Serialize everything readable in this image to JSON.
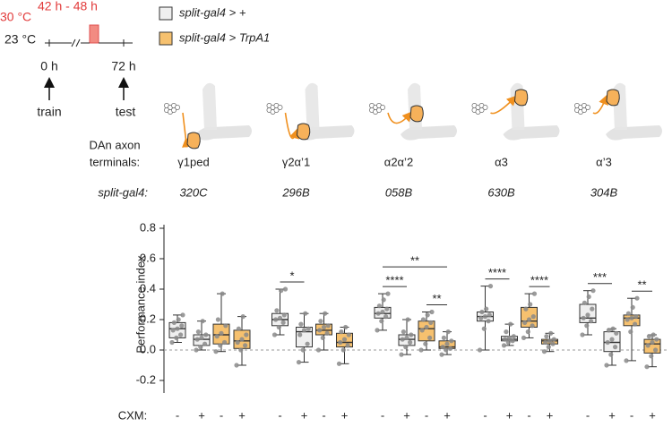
{
  "schematic": {
    "temp_high": "30 °C",
    "window": "42 h - 48 h",
    "temp_low": "23 °C",
    "t0": "0 h",
    "t1": "72 h",
    "train": "train",
    "test": "test"
  },
  "chart_data": {
    "type": "box",
    "y_label": "Performance index",
    "terminals_label": [
      "DAn axon",
      "terminals:"
    ],
    "line_label": "split-gal4:",
    "cxm_label": "CXM:",
    "ylim": [
      -0.2,
      0.8
    ],
    "yticks": [
      -0.2,
      {
        "value": 0,
        "label": "0.0"
      },
      0.2,
      0.4,
      0.6,
      0.8
    ],
    "zero_line": true,
    "series": [
      {
        "name": "split-gal4 > +",
        "color": "#efefef"
      },
      {
        "name": "split-gal4 > TrpA1",
        "color": "#f6c16f"
      }
    ],
    "groups": [
      {
        "terminal": "γ1ped",
        "line": "320C",
        "brackets": [],
        "boxes": [
          {
            "series": 0,
            "cxm": "-",
            "min": 0.05,
            "q1": 0.08,
            "median": 0.14,
            "q3": 0.18,
            "max": 0.23,
            "points": [
              0.05,
              0.08,
              0.1,
              0.13,
              0.14,
              0.16,
              0.18,
              0.2,
              0.23
            ]
          },
          {
            "series": 0,
            "cxm": "+",
            "min": 0.0,
            "q1": 0.03,
            "median": 0.07,
            "q3": 0.1,
            "max": 0.19,
            "points": [
              0.0,
              0.02,
              0.04,
              0.07,
              0.08,
              0.1,
              0.12,
              0.19
            ]
          },
          {
            "series": 1,
            "cxm": "-",
            "min": -0.01,
            "q1": 0.04,
            "median": 0.1,
            "q3": 0.17,
            "max": 0.37,
            "points": [
              -0.01,
              0.03,
              0.05,
              0.09,
              0.11,
              0.16,
              0.2,
              0.37
            ]
          },
          {
            "series": 1,
            "cxm": "+",
            "min": -0.1,
            "q1": 0.01,
            "median": 0.06,
            "q3": 0.13,
            "max": 0.22,
            "points": [
              -0.1,
              0.0,
              0.03,
              0.05,
              0.07,
              0.1,
              0.14,
              0.22
            ]
          }
        ]
      },
      {
        "terminal": "γ2α’1",
        "line": "296B",
        "brackets": [
          {
            "boxes": [
              0,
              1
            ],
            "label": "*"
          }
        ],
        "boxes": [
          {
            "series": 0,
            "cxm": "-",
            "min": 0.1,
            "q1": 0.16,
            "median": 0.2,
            "q3": 0.24,
            "max": 0.4,
            "points": [
              0.1,
              0.15,
              0.18,
              0.2,
              0.21,
              0.23,
              0.26,
              0.39,
              0.4
            ]
          },
          {
            "series": 0,
            "cxm": "+",
            "min": -0.08,
            "q1": 0.02,
            "median": 0.12,
            "q3": 0.15,
            "max": 0.24,
            "points": [
              -0.08,
              0.0,
              0.04,
              0.1,
              0.13,
              0.14,
              0.17,
              0.24
            ]
          },
          {
            "series": 1,
            "cxm": "-",
            "min": 0.0,
            "q1": 0.1,
            "median": 0.13,
            "q3": 0.17,
            "max": 0.24,
            "points": [
              0.0,
              0.08,
              0.11,
              0.13,
              0.15,
              0.16,
              0.19,
              0.24
            ]
          },
          {
            "series": 1,
            "cxm": "+",
            "min": -0.09,
            "q1": 0.02,
            "median": 0.05,
            "q3": 0.11,
            "max": 0.15,
            "points": [
              -0.09,
              0.0,
              0.03,
              0.05,
              0.07,
              0.1,
              0.12,
              0.15
            ]
          }
        ]
      },
      {
        "terminal": "α2α’2",
        "line": "058B",
        "brackets": [
          {
            "boxes": [
              0,
              1
            ],
            "label": "****"
          },
          {
            "boxes": [
              0,
              3
            ],
            "label": "**"
          },
          {
            "boxes": [
              2,
              3
            ],
            "label": "**"
          }
        ],
        "boxes": [
          {
            "series": 0,
            "cxm": "-",
            "min": 0.13,
            "q1": 0.21,
            "median": 0.24,
            "q3": 0.28,
            "max": 0.37,
            "points": [
              0.13,
              0.19,
              0.22,
              0.24,
              0.25,
              0.27,
              0.29,
              0.33,
              0.37
            ]
          },
          {
            "series": 0,
            "cxm": "+",
            "min": -0.03,
            "q1": 0.03,
            "median": 0.07,
            "q3": 0.1,
            "max": 0.2,
            "points": [
              -0.03,
              0.02,
              0.05,
              0.07,
              0.08,
              0.1,
              0.12,
              0.2
            ]
          },
          {
            "series": 1,
            "cxm": "-",
            "min": 0.0,
            "q1": 0.06,
            "median": 0.14,
            "q3": 0.19,
            "max": 0.25,
            "points": [
              0.0,
              0.04,
              0.08,
              0.13,
              0.15,
              0.18,
              0.2,
              0.23,
              0.25
            ]
          },
          {
            "series": 1,
            "cxm": "+",
            "min": -0.03,
            "q1": 0.01,
            "median": 0.02,
            "q3": 0.06,
            "max": 0.12,
            "points": [
              -0.03,
              0.0,
              0.01,
              0.02,
              0.04,
              0.06,
              0.08,
              0.12
            ]
          }
        ]
      },
      {
        "terminal": "α3",
        "line": "630B",
        "brackets": [
          {
            "boxes": [
              0,
              1
            ],
            "label": "****"
          },
          {
            "boxes": [
              2,
              3
            ],
            "label": "****"
          }
        ],
        "boxes": [
          {
            "series": 0,
            "cxm": "-",
            "min": 0.0,
            "q1": 0.19,
            "median": 0.22,
            "q3": 0.25,
            "max": 0.42,
            "points": [
              0.0,
              0.14,
              0.19,
              0.21,
              0.22,
              0.23,
              0.25,
              0.27,
              0.42
            ]
          },
          {
            "series": 0,
            "cxm": "+",
            "min": 0.03,
            "q1": 0.06,
            "median": 0.07,
            "q3": 0.09,
            "max": 0.17,
            "points": [
              0.03,
              0.05,
              0.06,
              0.07,
              0.08,
              0.09,
              0.12,
              0.17
            ]
          },
          {
            "series": 1,
            "cxm": "-",
            "min": 0.08,
            "q1": 0.15,
            "median": 0.19,
            "q3": 0.28,
            "max": 0.37,
            "points": [
              0.08,
              0.12,
              0.16,
              0.18,
              0.2,
              0.22,
              0.27,
              0.3,
              0.37
            ]
          },
          {
            "series": 1,
            "cxm": "+",
            "min": -0.01,
            "q1": 0.04,
            "median": 0.06,
            "q3": 0.07,
            "max": 0.11,
            "points": [
              -0.01,
              0.02,
              0.04,
              0.05,
              0.06,
              0.07,
              0.09,
              0.11
            ]
          }
        ]
      },
      {
        "terminal": "α’3",
        "line": "304B",
        "brackets": [
          {
            "boxes": [
              0,
              1
            ],
            "label": "***"
          },
          {
            "boxes": [
              2,
              3
            ],
            "label": "**"
          }
        ],
        "boxes": [
          {
            "series": 0,
            "cxm": "-",
            "min": 0.1,
            "q1": 0.18,
            "median": 0.21,
            "q3": 0.3,
            "max": 0.39,
            "points": [
              0.1,
              0.16,
              0.19,
              0.21,
              0.23,
              0.27,
              0.31,
              0.35,
              0.39
            ]
          },
          {
            "series": 0,
            "cxm": "+",
            "min": -0.1,
            "q1": -0.01,
            "median": 0.05,
            "q3": 0.12,
            "max": 0.14,
            "points": [
              -0.1,
              -0.03,
              0.02,
              0.05,
              0.07,
              0.11,
              0.13,
              0.14
            ]
          },
          {
            "series": 1,
            "cxm": "-",
            "min": -0.07,
            "q1": 0.16,
            "median": 0.21,
            "q3": 0.23,
            "max": 0.34,
            "points": [
              -0.07,
              0.12,
              0.17,
              0.2,
              0.21,
              0.22,
              0.24,
              0.28,
              0.34
            ]
          },
          {
            "series": 1,
            "cxm": "+",
            "min": -0.11,
            "q1": -0.02,
            "median": 0.04,
            "q3": 0.07,
            "max": 0.1,
            "points": [
              -0.11,
              -0.04,
              0.0,
              0.03,
              0.05,
              0.07,
              0.09,
              0.1
            ]
          }
        ]
      }
    ]
  }
}
